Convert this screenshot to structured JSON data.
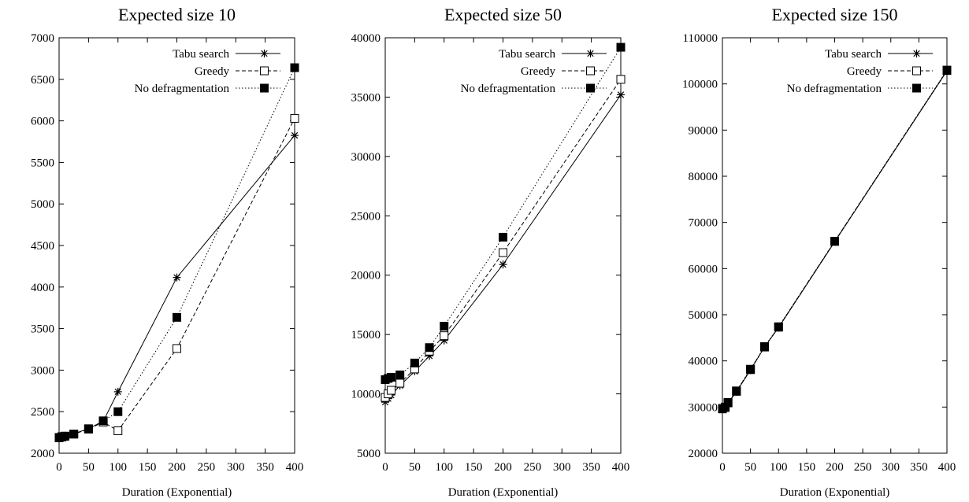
{
  "chart_data": [
    {
      "type": "line",
      "title": "Expected size 10",
      "xlabel": "Duration (Exponential)",
      "ylabel": "",
      "xlim": [
        0,
        400
      ],
      "ylim": [
        2000,
        7000
      ],
      "xticks": [
        "0",
        "50",
        "100",
        "150",
        "200",
        "250",
        "300",
        "350",
        "400"
      ],
      "yticks": [
        "2000",
        "2500",
        "3000",
        "3500",
        "4000",
        "4500",
        "5000",
        "5500",
        "6000",
        "6500",
        "7000"
      ],
      "grid": false,
      "legend_position": "top-right",
      "series": [
        {
          "name": "Tabu search",
          "marker": "star",
          "line": "solid",
          "x": [
            0,
            5,
            10,
            25,
            50,
            75,
            100,
            200,
            400
          ],
          "y": [
            2195,
            2200,
            2210,
            2235,
            2295,
            2385,
            2740,
            4115,
            5825
          ]
        },
        {
          "name": "Greedy",
          "marker": "open-square",
          "line": "dashed",
          "x": [
            0,
            5,
            10,
            25,
            50,
            75,
            100,
            200,
            400
          ],
          "y": [
            2190,
            2200,
            2205,
            2230,
            2290,
            2375,
            2270,
            3260,
            6030
          ]
        },
        {
          "name": "No defragmentation",
          "marker": "filled-square",
          "line": "dotted",
          "x": [
            0,
            5,
            10,
            25,
            50,
            75,
            100,
            200,
            400
          ],
          "y": [
            2185,
            2195,
            2205,
            2230,
            2295,
            2390,
            2500,
            3635,
            6640
          ]
        }
      ]
    },
    {
      "type": "line",
      "title": "Expected size 50",
      "xlabel": "Duration (Exponential)",
      "ylabel": "",
      "xlim": [
        0,
        400
      ],
      "ylim": [
        5000,
        40000
      ],
      "xticks": [
        "0",
        "50",
        "100",
        "150",
        "200",
        "250",
        "300",
        "350",
        "400"
      ],
      "yticks": [
        "5000",
        "10000",
        "15000",
        "20000",
        "25000",
        "30000",
        "35000",
        "40000"
      ],
      "grid": false,
      "legend_position": "top-right",
      "series": [
        {
          "name": "Tabu search",
          "marker": "star",
          "line": "solid",
          "x": [
            0,
            5,
            10,
            25,
            50,
            75,
            100,
            200,
            400
          ],
          "y": [
            9300,
            9600,
            9900,
            10700,
            11900,
            13200,
            14500,
            20900,
            35200
          ]
        },
        {
          "name": "Greedy",
          "marker": "open-square",
          "line": "dashed",
          "x": [
            0,
            5,
            10,
            25,
            50,
            75,
            100,
            200,
            400
          ],
          "y": [
            9700,
            10000,
            10300,
            10900,
            12100,
            13600,
            14900,
            21900,
            36500
          ]
        },
        {
          "name": "No defragmentation",
          "marker": "filled-square",
          "line": "dotted",
          "x": [
            0,
            5,
            10,
            25,
            50,
            75,
            100,
            200,
            400
          ],
          "y": [
            11200,
            11300,
            11400,
            11600,
            12600,
            13900,
            15700,
            23200,
            39200
          ]
        }
      ]
    },
    {
      "type": "line",
      "title": "Expected size 150",
      "xlabel": "Duration (Exponential)",
      "ylabel": "",
      "xlim": [
        0,
        400
      ],
      "ylim": [
        20000,
        110000
      ],
      "xticks": [
        "0",
        "50",
        "100",
        "150",
        "200",
        "250",
        "300",
        "350",
        "400"
      ],
      "yticks": [
        "20000",
        "30000",
        "40000",
        "50000",
        "60000",
        "70000",
        "80000",
        "90000",
        "100000",
        "110000"
      ],
      "grid": false,
      "legend_position": "top-right",
      "series": [
        {
          "name": "Tabu search",
          "marker": "star",
          "line": "solid",
          "x": [
            0,
            5,
            10,
            25,
            50,
            75,
            100,
            200,
            400
          ],
          "y": [
            29500,
            29800,
            30800,
            33300,
            38000,
            43000,
            47200,
            65800,
            102800
          ]
        },
        {
          "name": "Greedy",
          "marker": "open-square",
          "line": "dashed",
          "x": [
            0,
            5,
            10,
            25,
            50,
            75,
            100,
            200,
            400
          ],
          "y": [
            29600,
            29900,
            30900,
            33400,
            38100,
            43000,
            47300,
            65900,
            102900
          ]
        },
        {
          "name": "No defragmentation",
          "marker": "filled-square",
          "line": "dotted",
          "x": [
            0,
            5,
            10,
            25,
            50,
            75,
            100,
            200,
            400
          ],
          "y": [
            29700,
            30000,
            31000,
            33500,
            38200,
            43100,
            47400,
            65900,
            103000
          ]
        }
      ]
    }
  ]
}
